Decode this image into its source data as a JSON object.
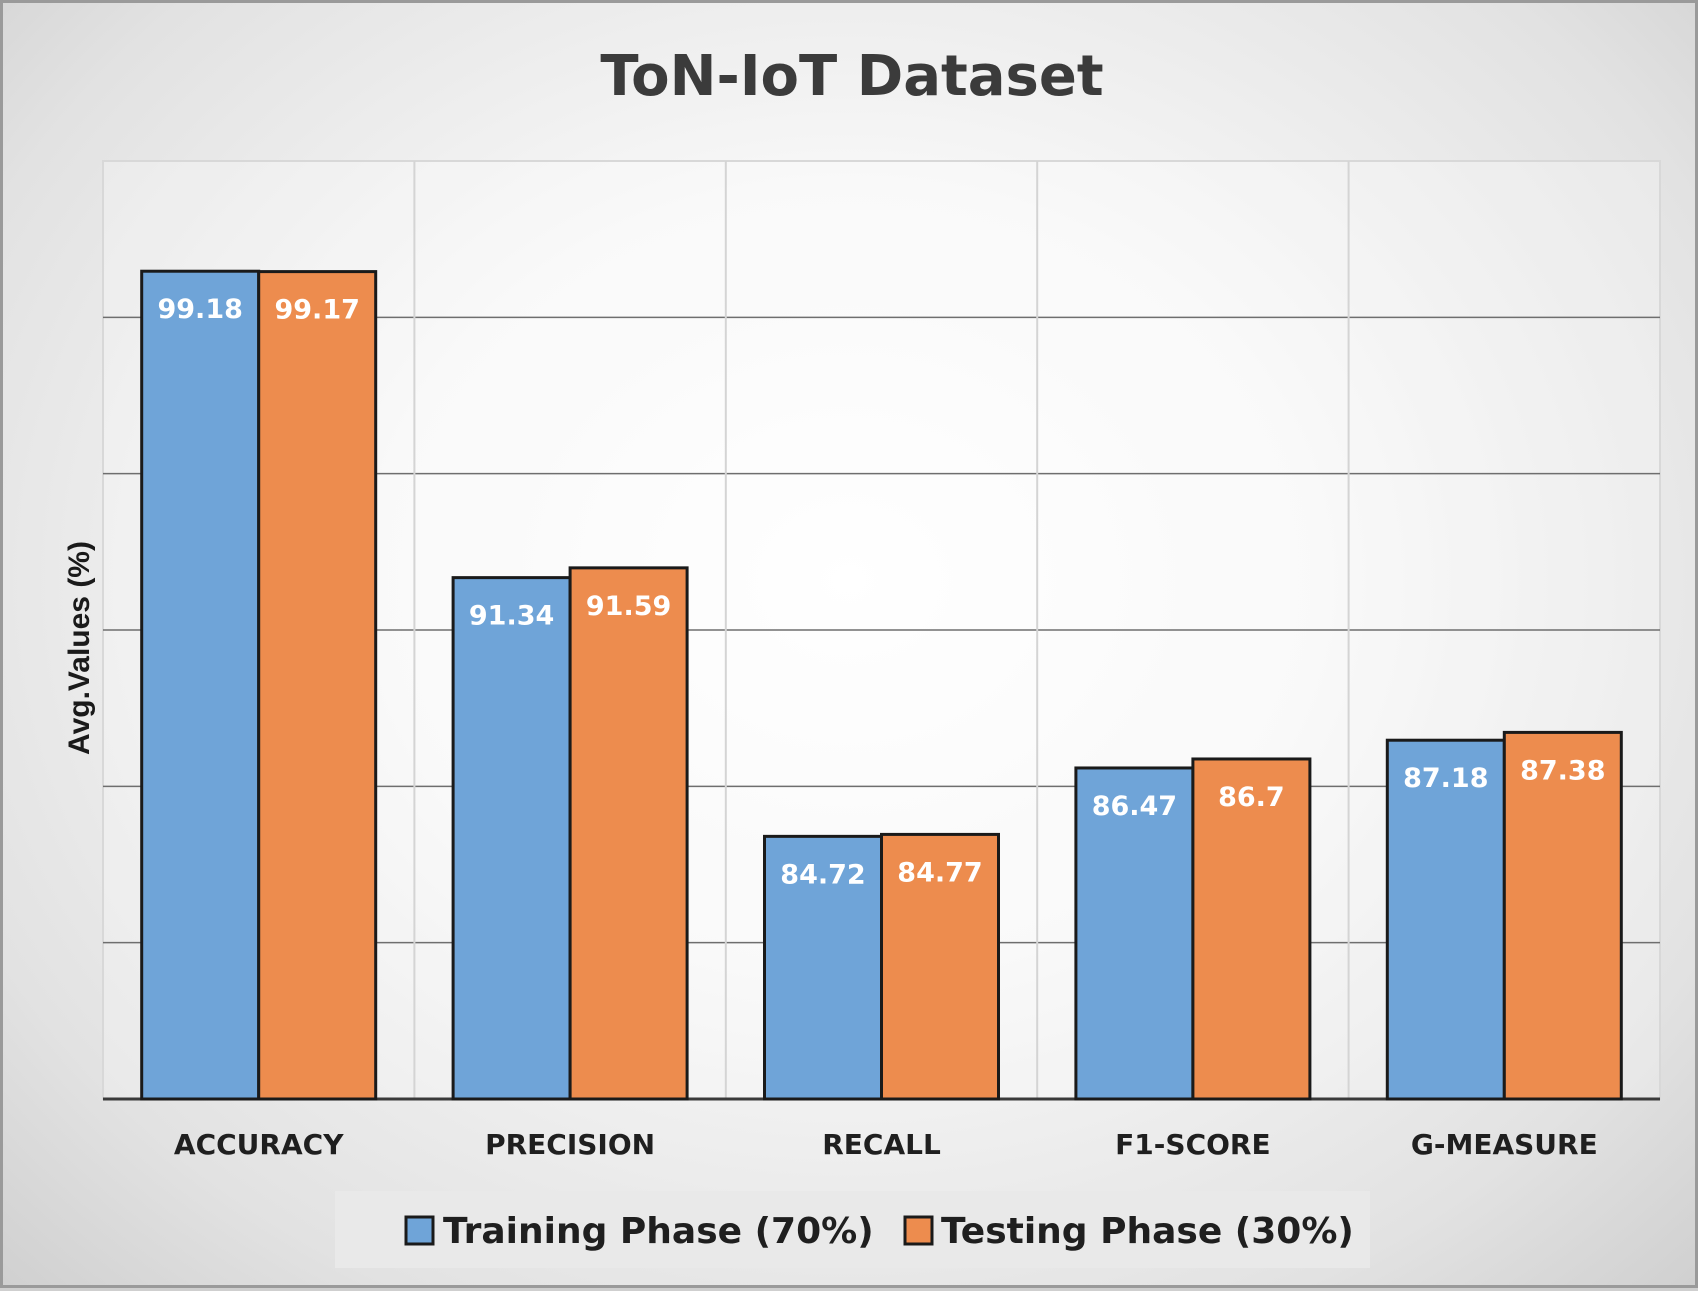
{
  "chart_data": {
    "type": "bar",
    "title": "ToN-IoT Dataset",
    "xlabel": "",
    "ylabel": "Avg.Values (%)",
    "ylim": [
      78,
      102
    ],
    "grid": true,
    "categories": [
      "ACCURACY",
      "PRECISION",
      "RECALL",
      "F1-SCORE",
      "G-MEASURE"
    ],
    "series": [
      {
        "name": "Training Phase (70%)",
        "color": "#6fa4d8",
        "values": [
          99.18,
          91.34,
          84.72,
          86.47,
          87.18
        ],
        "labels": [
          "99.18",
          "91.34",
          "84.72",
          "86.47",
          "87.18"
        ]
      },
      {
        "name": "Testing Phase (30%)",
        "color": "#ed8c4e",
        "values": [
          99.17,
          91.59,
          84.77,
          86.7,
          87.38
        ],
        "labels": [
          "99.17",
          "91.59",
          "84.77",
          "86.7",
          "87.38"
        ]
      }
    ],
    "legend_position": "bottom"
  }
}
